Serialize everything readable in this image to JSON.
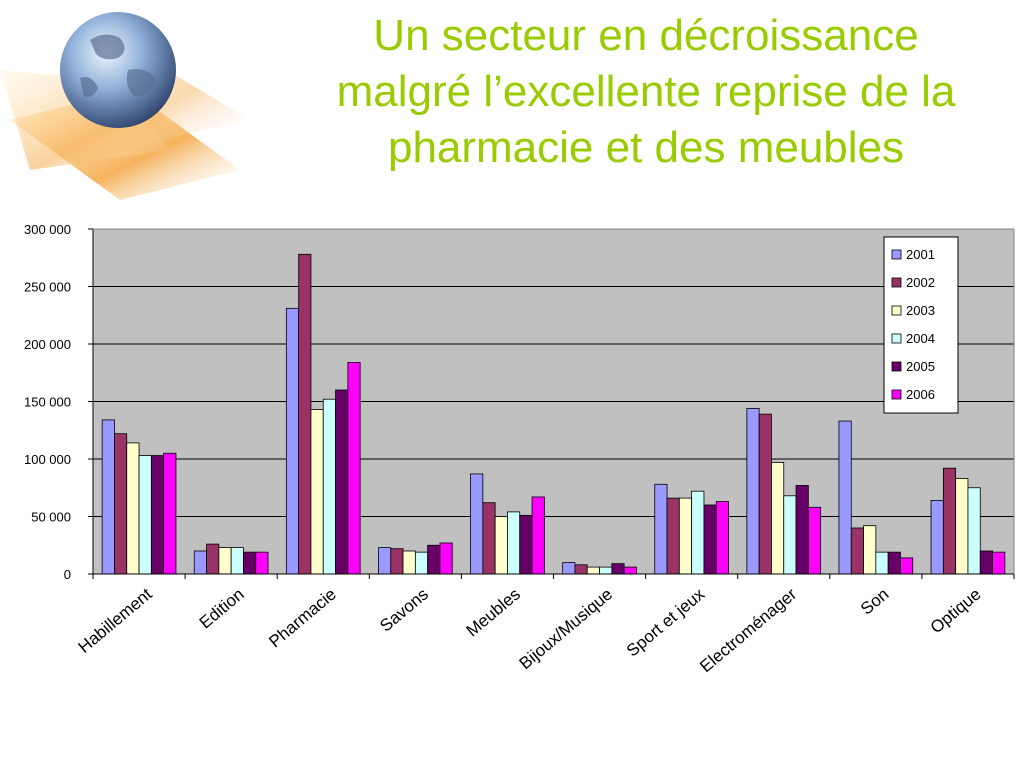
{
  "slide": {
    "title_lines": [
      "Un secteur en décroissance",
      "malgré l’excellente reprise de la",
      "pharmacie et des meubles"
    ],
    "title_color": "#99cc00"
  },
  "logo": {
    "icon": "globe-icon"
  },
  "chart_data": {
    "type": "bar",
    "categories": [
      "Habillement",
      "Edition",
      "Pharmacie",
      "Savons",
      "Meubles",
      "Bijoux/Musique",
      "Sport et jeux",
      "Electroménager",
      "Son",
      "Optique"
    ],
    "series": [
      {
        "name": "2001",
        "color": "#9999ff",
        "values": [
          134000,
          20000,
          231000,
          23000,
          87000,
          10000,
          78000,
          144000,
          133000,
          64000
        ]
      },
      {
        "name": "2002",
        "color": "#993366",
        "values": [
          122000,
          26000,
          278000,
          22000,
          62000,
          8000,
          66000,
          139000,
          40000,
          92000
        ]
      },
      {
        "name": "2003",
        "color": "#ffffcc",
        "values": [
          114000,
          23000,
          143000,
          20000,
          50000,
          6000,
          66000,
          97000,
          42000,
          83000
        ]
      },
      {
        "name": "2004",
        "color": "#ccffff",
        "values": [
          103000,
          23000,
          152000,
          19000,
          54000,
          6000,
          72000,
          68000,
          19000,
          75000
        ]
      },
      {
        "name": "2005",
        "color": "#660066",
        "values": [
          103000,
          19000,
          160000,
          25000,
          51000,
          9000,
          60000,
          77000,
          19000,
          20000
        ]
      },
      {
        "name": "2006",
        "color": "#ff00ff",
        "values": [
          105000,
          19000,
          184000,
          27000,
          67000,
          6000,
          63000,
          58000,
          14000,
          19000
        ]
      }
    ],
    "y_ticks": [
      "0",
      "50 000",
      "100 000",
      "150 000",
      "200 000",
      "250 000",
      "300 000"
    ],
    "ylim": [
      0,
      300000
    ],
    "grid": true,
    "plot_background": "#c0c0c0",
    "legend_position": "top-right",
    "title": "",
    "xlabel": "",
    "ylabel": ""
  }
}
